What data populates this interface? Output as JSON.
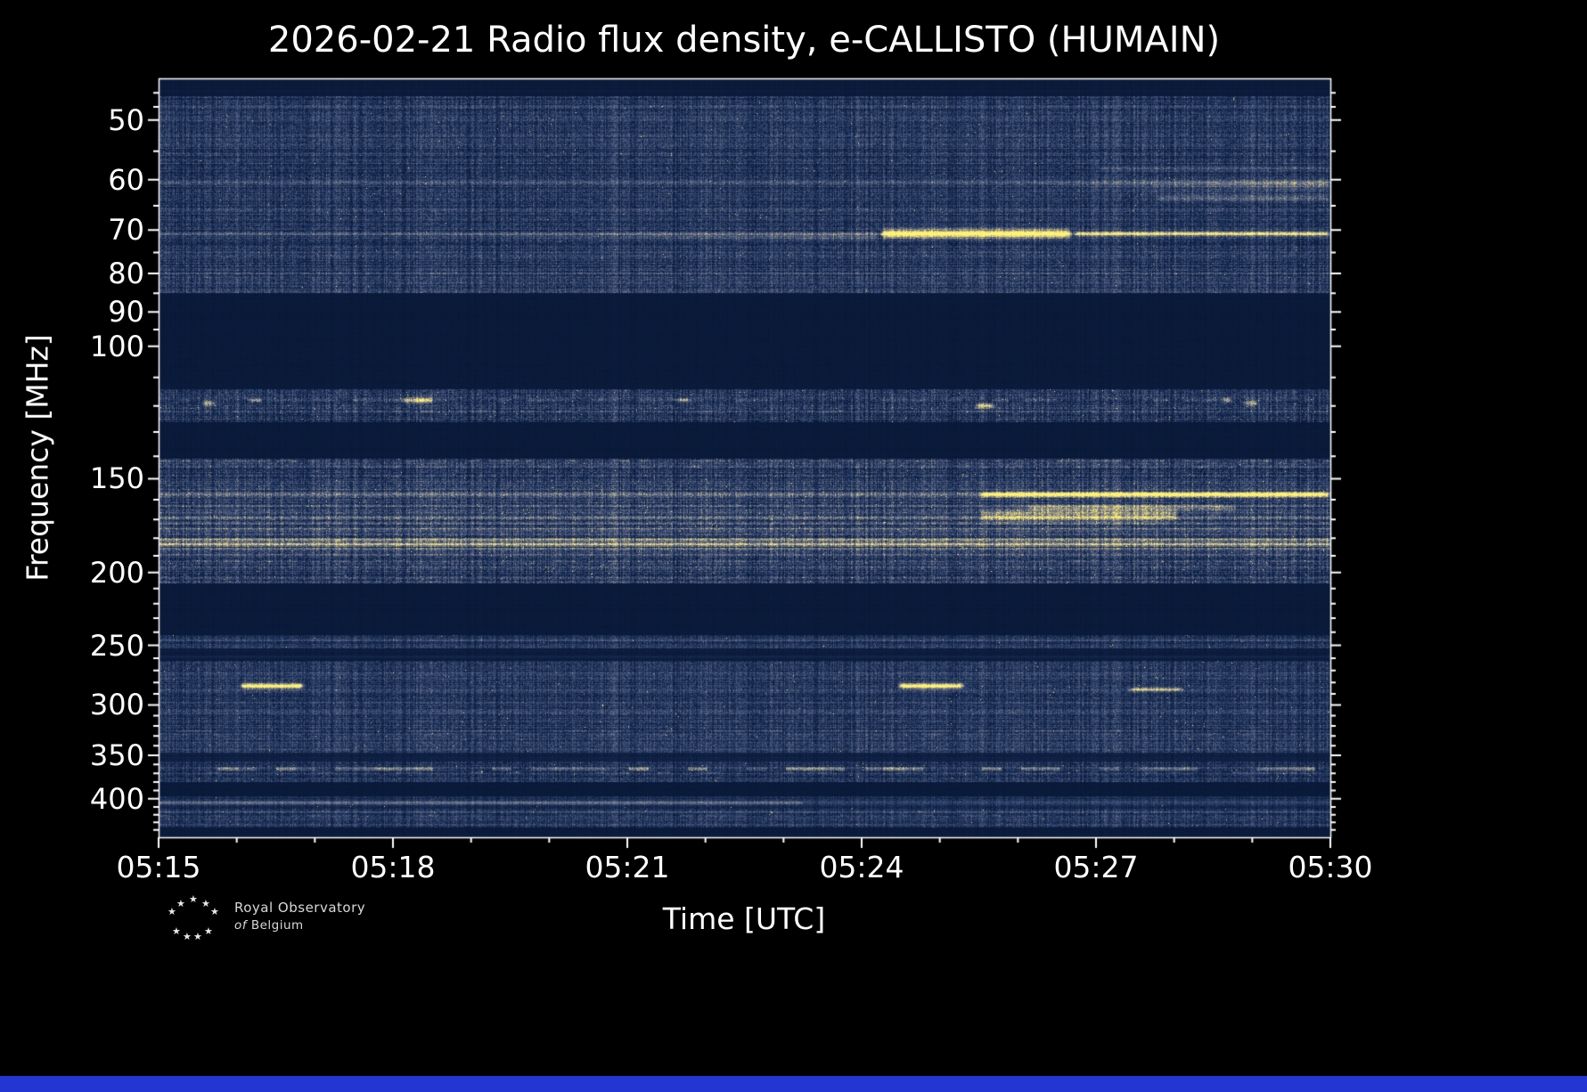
{
  "title": "2026-02-21 Radio flux density, e-CALLISTO (HUMAIN)",
  "xlabel": "Time [UTC]",
  "ylabel": "Frequency [MHz]",
  "logo": {
    "line1": "Royal Observatory",
    "line2_of": "of",
    "line2_rest": "Belgium",
    "star_glyph": "★",
    "star_positions": [
      [
        27,
        0
      ],
      [
        13,
        5
      ],
      [
        41,
        5
      ],
      [
        3,
        14
      ],
      [
        51,
        14
      ],
      [
        8,
        36
      ],
      [
        20,
        42
      ],
      [
        32,
        42
      ],
      [
        44,
        36
      ]
    ]
  },
  "colors": {
    "background": "#000000",
    "axis": "#ffffff",
    "footer_bar": "#2336d4"
  },
  "chart_data": {
    "type": "heatmap",
    "title": "2026-02-21 Radio flux density, e-CALLISTO (HUMAIN)",
    "xlabel": "Time [UTC]",
    "ylabel": "Frequency [MHz]",
    "x_major_ticks": [
      "05:15",
      "05:18",
      "05:21",
      "05:24",
      "05:27",
      "05:30"
    ],
    "x_minor_interval_minutes": 1,
    "x_total_minutes": 15,
    "y_scale": "log",
    "y_range_mhz": [
      44,
      450
    ],
    "y_major_ticks": [
      50,
      60,
      70,
      80,
      90,
      100,
      150,
      200,
      250,
      300,
      350,
      400
    ],
    "y_minor_ticks": [
      46,
      48,
      55,
      65,
      75,
      85,
      95,
      110,
      120,
      130,
      140,
      160,
      170,
      180,
      190,
      210,
      220,
      230,
      240,
      260,
      270,
      280,
      290,
      310,
      320,
      330,
      340,
      360,
      370,
      380,
      390,
      410,
      420,
      430,
      440
    ],
    "colormap": [
      [
        0,
        "#071634"
      ],
      [
        0.22,
        "#16294f"
      ],
      [
        0.4,
        "#35486f"
      ],
      [
        0.55,
        "#5b6683"
      ],
      [
        0.68,
        "#8c8c85"
      ],
      [
        0.8,
        "#c6b97e"
      ],
      [
        0.9,
        "#eedd76"
      ],
      [
        1,
        "#fff36e"
      ]
    ],
    "bands": [
      {
        "f0": 44,
        "f1": 46.5,
        "base": 0.06,
        "row_var": 0.02,
        "speckle": 0.02,
        "hot": 0
      },
      {
        "f0": 46.5,
        "f1": 85,
        "base": 0.3,
        "row_var": 0.1,
        "speckle": 0.16,
        "hot": 0.0015
      },
      {
        "f0": 85,
        "f1": 114,
        "base": 0.05,
        "row_var": 0.012,
        "speckle": 0.015,
        "hot": 0
      },
      {
        "f0": 114,
        "f1": 126,
        "base": 0.3,
        "row_var": 0.1,
        "speckle": 0.18,
        "hot": 0.004
      },
      {
        "f0": 126,
        "f1": 141,
        "base": 0.05,
        "row_var": 0.012,
        "speckle": 0.015,
        "hot": 0
      },
      {
        "f0": 141,
        "f1": 207,
        "base": 0.32,
        "row_var": 0.12,
        "speckle": 0.18,
        "hot": 0.004
      },
      {
        "f0": 207,
        "f1": 242,
        "base": 0.05,
        "row_var": 0.012,
        "speckle": 0.015,
        "hot": 0
      },
      {
        "f0": 242,
        "f1": 252,
        "base": 0.28,
        "row_var": 0.08,
        "speckle": 0.13,
        "hot": 0.002
      },
      {
        "f0": 252,
        "f1": 262,
        "base": 0.08,
        "row_var": 0.02,
        "speckle": 0.03,
        "hot": 0
      },
      {
        "f0": 262,
        "f1": 347,
        "base": 0.3,
        "row_var": 0.1,
        "speckle": 0.15,
        "hot": 0.002
      },
      {
        "f0": 347,
        "f1": 357,
        "base": 0.11,
        "row_var": 0.04,
        "speckle": 0.05,
        "hot": 0
      },
      {
        "f0": 357,
        "f1": 380,
        "base": 0.3,
        "row_var": 0.1,
        "speckle": 0.15,
        "hot": 0.003
      },
      {
        "f0": 380,
        "f1": 397,
        "base": 0.05,
        "row_var": 0.012,
        "speckle": 0.015,
        "hot": 0
      },
      {
        "f0": 397,
        "f1": 412,
        "base": 0.22,
        "row_var": 0.07,
        "speckle": 0.1,
        "hot": 0.001
      },
      {
        "f0": 412,
        "f1": 437,
        "base": 0.3,
        "row_var": 0.1,
        "speckle": 0.14,
        "hot": 0.002
      },
      {
        "f0": 437,
        "f1": 450,
        "base": 0.06,
        "row_var": 0.02,
        "speckle": 0.02,
        "hot": 0
      }
    ],
    "lines": [
      {
        "f": 48,
        "hw": 1,
        "add": 0.06
      },
      {
        "f": 53,
        "hw": 1,
        "add": 0.1
      },
      {
        "f": 57,
        "hw": 1,
        "add": 0.08
      },
      {
        "f": 60.5,
        "hw": 2,
        "add": 0.16
      },
      {
        "f": 66,
        "hw": 1,
        "add": 0.08
      },
      {
        "f": 70.8,
        "hw": 2,
        "add": 0.18
      },
      {
        "f": 75,
        "hw": 1,
        "add": 0.06
      },
      {
        "f": 80,
        "hw": 1,
        "add": 0.12
      },
      {
        "f": 118,
        "hw": 2,
        "add": 0.15,
        "dash": 0.45,
        "seg": 18
      },
      {
        "f": 122,
        "hw": 1,
        "add": 0.1,
        "dash": 0.4,
        "seg": 14
      },
      {
        "f": 142,
        "hw": 1,
        "add": 0.15,
        "dash": 0.5,
        "seg": 12
      },
      {
        "f": 145,
        "hw": 1,
        "add": 0.12,
        "dash": 0.3,
        "seg": 10
      },
      {
        "f": 149,
        "hw": 1,
        "add": 0.1,
        "dash": 0.25,
        "seg": 10
      },
      {
        "f": 152,
        "hw": 1,
        "add": 0.12
      },
      {
        "f": 155,
        "hw": 1,
        "add": 0.15
      },
      {
        "f": 157.5,
        "hw": 2,
        "add": 0.22
      },
      {
        "f": 160,
        "hw": 1,
        "add": 0.12
      },
      {
        "f": 163,
        "hw": 1,
        "add": 0.18
      },
      {
        "f": 166,
        "hw": 1,
        "add": 0.15
      },
      {
        "f": 169,
        "hw": 2,
        "add": 0.22
      },
      {
        "f": 172,
        "hw": 1,
        "add": 0.25
      },
      {
        "f": 175,
        "hw": 2,
        "add": 0.3
      },
      {
        "f": 178,
        "hw": 1,
        "add": 0.25
      },
      {
        "f": 181,
        "hw": 2,
        "add": 0.45
      },
      {
        "f": 183.5,
        "hw": 2,
        "add": 0.55
      },
      {
        "f": 186,
        "hw": 1,
        "add": 0.35
      },
      {
        "f": 189,
        "hw": 1,
        "add": 0.2
      },
      {
        "f": 193,
        "hw": 1,
        "add": 0.1,
        "dash": 0.3,
        "seg": 12
      },
      {
        "f": 197,
        "hw": 1,
        "add": 0.08
      },
      {
        "f": 246,
        "hw": 1,
        "add": 0.12
      },
      {
        "f": 250,
        "hw": 1,
        "add": 0.1
      },
      {
        "f": 259,
        "hw": 1,
        "add": 0.12
      },
      {
        "f": 268,
        "hw": 1,
        "add": 0.08
      },
      {
        "f": 272,
        "hw": 1,
        "add": 0.06
      },
      {
        "f": 305,
        "hw": 1,
        "add": 0.05
      },
      {
        "f": 325,
        "hw": 1,
        "add": 0.12,
        "dash": 0.5,
        "seg": 20
      },
      {
        "f": 329,
        "hw": 1,
        "add": 0.08,
        "dash": 0.4,
        "seg": 16
      },
      {
        "f": 365,
        "hw": 2,
        "add": 0.35,
        "dash": 0.55,
        "seg": 22
      },
      {
        "f": 369,
        "hw": 1,
        "add": 0.15,
        "dash": 0.4,
        "seg": 14
      },
      {
        "f": 405,
        "hw": 2,
        "add": 0.45,
        "t0": 0,
        "t1": 0.55
      },
      {
        "f": 405,
        "hw": 2,
        "add": 0.22,
        "t0": 0.55,
        "t1": 1
      },
      {
        "f": 416,
        "hw": 1,
        "add": 0.1
      },
      {
        "f": 421,
        "hw": 1,
        "add": 0.12,
        "dash": 0.4,
        "seg": 15
      },
      {
        "f": 427,
        "hw": 1,
        "add": 0.08
      }
    ],
    "blobs": [
      {
        "f": 71.5,
        "hw": 4,
        "add": 0.2,
        "t0": 0.2,
        "t1": 0.615,
        "ramp": true
      },
      {
        "f": 70.8,
        "hw": 5,
        "add": 0.75,
        "t0": 0.615,
        "t1": 0.78
      },
      {
        "f": 70.8,
        "hw": 3,
        "add": 0.45,
        "t0": 0.78,
        "t1": 1.0
      },
      {
        "f": 61,
        "hw": 6,
        "add": 0.3,
        "t0": 0.73,
        "t1": 1.0,
        "ramp": true
      },
      {
        "f": 63.5,
        "hw": 4,
        "add": 0.22,
        "t0": 0.85,
        "t1": 1.0
      },
      {
        "f": 58,
        "hw": 3,
        "add": 0.15,
        "t0": 0.8,
        "t1": 1.0
      },
      {
        "f": 283,
        "hw": 3,
        "add": 0.8,
        "t0": 0.068,
        "t1": 0.125
      },
      {
        "f": 283,
        "hw": 3,
        "add": 0.8,
        "t0": 0.63,
        "t1": 0.688
      },
      {
        "f": 286,
        "hw": 2,
        "add": 0.5,
        "t0": 0.826,
        "t1": 0.875
      },
      {
        "f": 157.5,
        "hw": 3,
        "add": 0.6,
        "t0": 0.7,
        "t1": 1.0
      },
      {
        "f": 168,
        "hw": 7,
        "add": 0.35,
        "t0": 0.7,
        "t1": 0.87
      },
      {
        "f": 164,
        "hw": 3,
        "add": 0.3,
        "t0": 0.74,
        "t1": 0.92
      },
      {
        "f": 119,
        "hw": 3,
        "add": 0.5,
        "t0": 0.035,
        "t1": 0.05
      },
      {
        "f": 118,
        "hw": 2,
        "add": 0.45,
        "t0": 0.075,
        "t1": 0.09
      },
      {
        "f": 118,
        "hw": 3,
        "add": 0.55,
        "t0": 0.205,
        "t1": 0.235
      },
      {
        "f": 118,
        "hw": 2,
        "add": 0.35,
        "t0": 0.44,
        "t1": 0.455
      },
      {
        "f": 120,
        "hw": 3,
        "add": 0.55,
        "t0": 0.695,
        "t1": 0.715
      },
      {
        "f": 118,
        "hw": 3,
        "add": 0.55,
        "t0": 0.905,
        "t1": 0.917
      },
      {
        "f": 119,
        "hw": 3,
        "add": 0.5,
        "t0": 0.925,
        "t1": 0.94
      }
    ]
  }
}
